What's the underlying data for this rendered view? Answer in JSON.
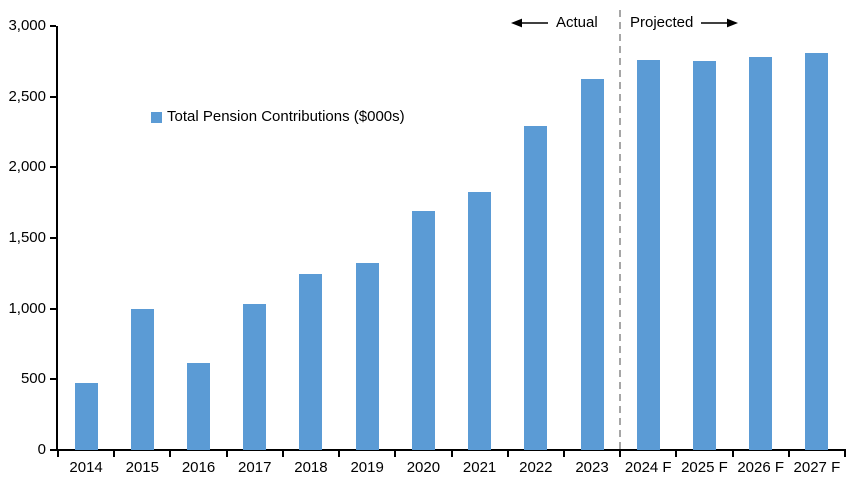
{
  "chart_data": {
    "type": "bar",
    "title": "",
    "legend": "Total Pension Contributions ($000s)",
    "categories": [
      "2014",
      "2015",
      "2016",
      "2017",
      "2018",
      "2019",
      "2020",
      "2021",
      "2022",
      "2023",
      "2024 F",
      "2025 F",
      "2026 F",
      "2027 F"
    ],
    "values": [
      475,
      1000,
      615,
      1030,
      1245,
      1320,
      1690,
      1825,
      2290,
      2625,
      2760,
      2750,
      2780,
      2810
    ],
    "ylim": [
      0,
      3000
    ],
    "yticks": [
      0,
      500,
      1000,
      1500,
      2000,
      2500,
      3000
    ],
    "ytick_labels": [
      "0",
      "500",
      "1,000",
      "1,500",
      "2,000",
      "2,500",
      "3,000"
    ],
    "xlabel": "",
    "ylabel": "",
    "grid": false,
    "legend_position": "inside-upper-left",
    "bar_color": "#5B9BD5",
    "divider_color": "#A6A6A6",
    "divider_after_category": "2023",
    "annotations": {
      "actual_label": "Actual",
      "projected_label": "Projected"
    }
  }
}
